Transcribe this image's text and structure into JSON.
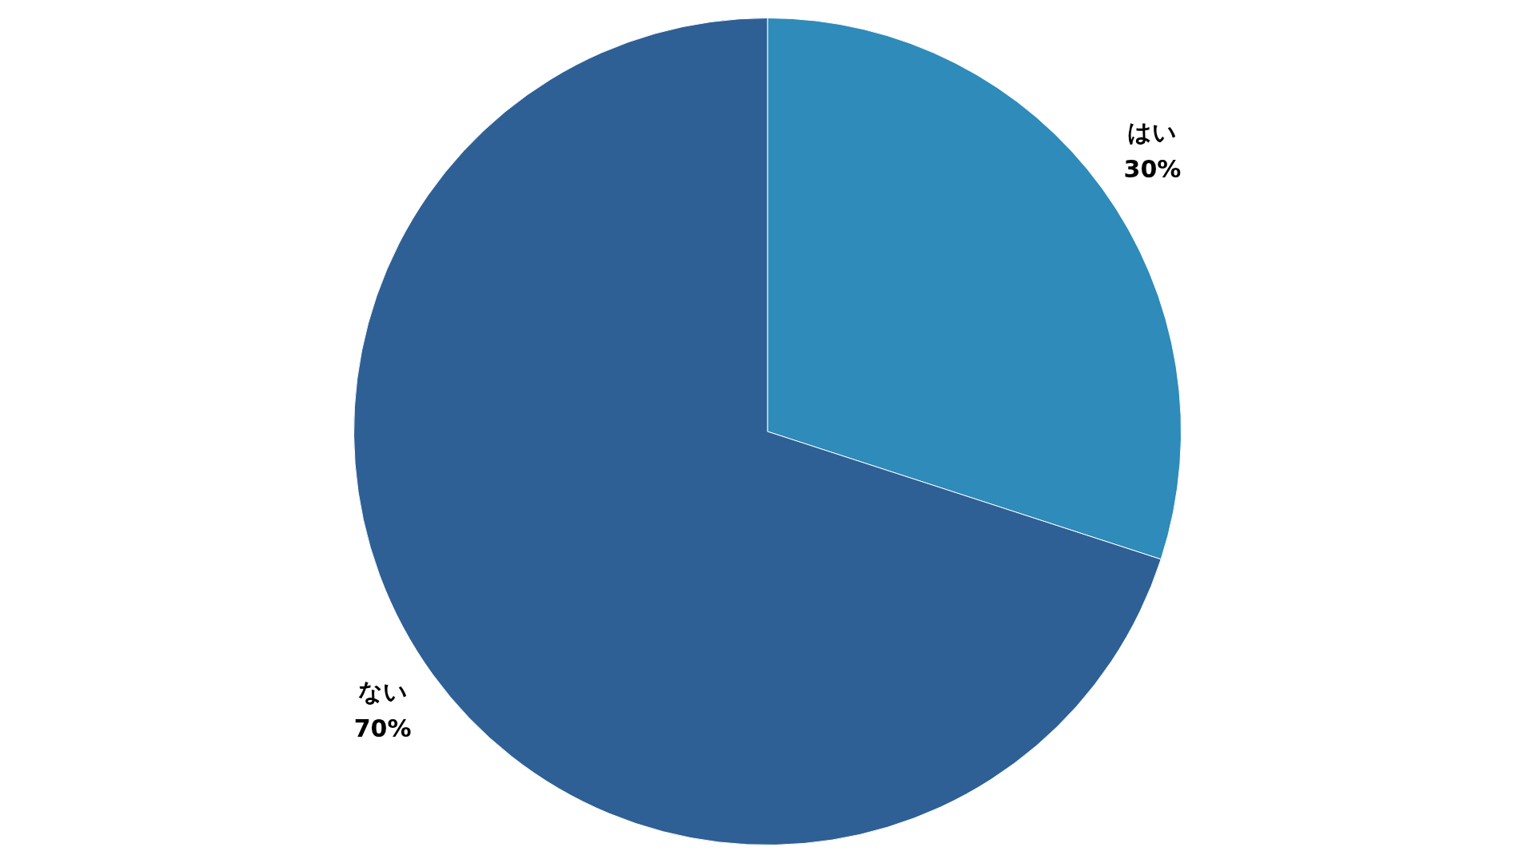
{
  "chart_data": {
    "type": "pie",
    "categories": [
      "はい",
      "ない"
    ],
    "values": [
      30,
      70
    ],
    "colors": [
      "#2e8bba",
      "#2e6096"
    ],
    "value_labels": [
      "30%",
      "70%"
    ],
    "legend": false
  }
}
